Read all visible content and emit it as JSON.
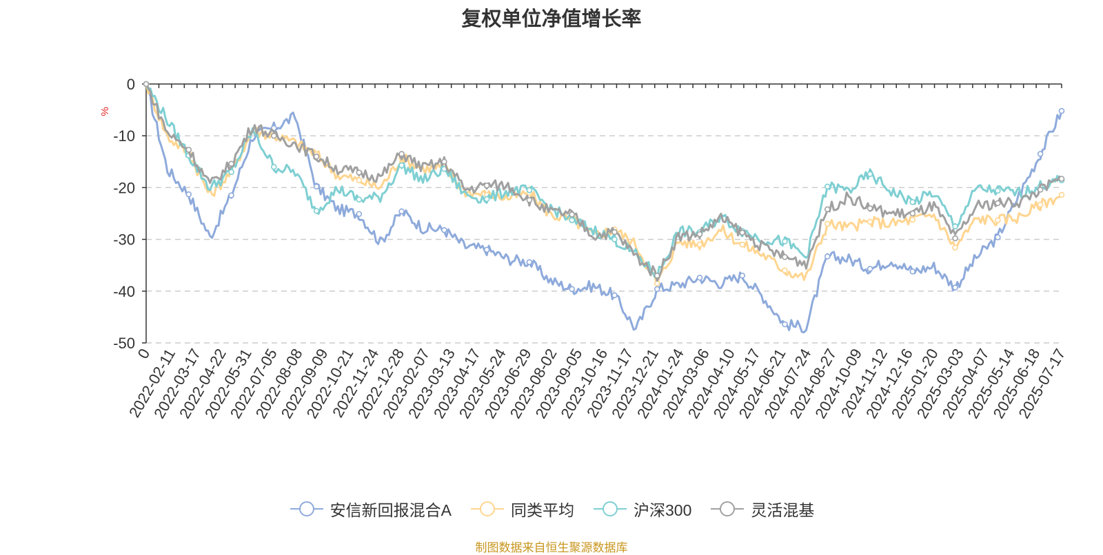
{
  "chart_data": {
    "type": "line",
    "title": "复权单位净值增长率",
    "ylabel": "%",
    "ylim": [
      -50,
      0
    ],
    "yticks": [
      0,
      -10,
      -20,
      -30,
      -40,
      -50
    ],
    "x_start_label": "0",
    "x_tick_labels": [
      "2022-02-11",
      "2022-03-17",
      "2022-04-22",
      "2022-05-31",
      "2022-07-05",
      "2022-08-08",
      "2022-09-09",
      "2022-10-21",
      "2022-11-24",
      "2022-12-28",
      "2023-02-07",
      "2023-03-13",
      "2023-04-17",
      "2023-05-24",
      "2023-06-29",
      "2023-08-02",
      "2023-09-05",
      "2023-10-16",
      "2023-11-17",
      "2023-12-21",
      "2024-01-24",
      "2024-03-06",
      "2024-04-10",
      "2024-05-17",
      "2024-06-21",
      "2024-07-24",
      "2024-08-27",
      "2024-10-09",
      "2024-11-12",
      "2024-12-16",
      "2025-01-20",
      "2025-03-03",
      "2025-04-07",
      "2025-05-14",
      "2025-06-18",
      "2025-07-17"
    ],
    "grid": "horizontal-dashed",
    "legend_position": "bottom",
    "series": [
      {
        "name": "安信新回报混合A",
        "color": "#8eaadb",
        "values": [
          0,
          -16.5,
          -21.3,
          -29.6,
          -21.5,
          -10.1,
          -8.5,
          -6.3,
          -19.8,
          -24.2,
          -25.1,
          -30.6,
          -24.6,
          -27.8,
          -28.2,
          -31.4,
          -32.0,
          -33.8,
          -34.4,
          -38.0,
          -39.6,
          -39.0,
          -40.8,
          -47.4,
          -39.6,
          -38.8,
          -37.4,
          -38.5,
          -37.0,
          -41.2,
          -46.4,
          -47.0,
          -33.3,
          -33.8,
          -35.7,
          -34.0,
          -36.2,
          -35.2,
          -39.3,
          -33.5,
          -29.6,
          -21.4,
          -13.5,
          -5.2
        ]
      },
      {
        "name": "同类平均",
        "color": "#ffd590",
        "values": [
          0,
          -10.2,
          -13.3,
          -21.5,
          -17.0,
          -9.0,
          -10.0,
          -11.3,
          -13.6,
          -17.6,
          -18.6,
          -20.0,
          -14.2,
          -16.4,
          -16.0,
          -20.8,
          -21.4,
          -22.0,
          -21.0,
          -25.3,
          -26.1,
          -29.2,
          -28.1,
          -31.0,
          -38.5,
          -30.4,
          -31.0,
          -28.1,
          -31.0,
          -33.0,
          -36.0,
          -37.4,
          -27.0,
          -27.7,
          -26.6,
          -27.0,
          -26.2,
          -25.2,
          -31.6,
          -26.0,
          -26.3,
          -25.7,
          -23.3,
          -21.4
        ]
      },
      {
        "name": "沪深300",
        "color": "#7ecfd2",
        "values": [
          0,
          -7.0,
          -13.8,
          -20.1,
          -17.0,
          -9.0,
          -16.0,
          -17.0,
          -24.5,
          -20.2,
          -22.3,
          -21.8,
          -15.7,
          -18.6,
          -16.4,
          -21.4,
          -22.2,
          -20.6,
          -20.5,
          -24.0,
          -26.3,
          -28.2,
          -30.0,
          -33.0,
          -37.0,
          -28.5,
          -28.6,
          -25.6,
          -28.4,
          -30.0,
          -30.4,
          -33.4,
          -19.8,
          -20.6,
          -17.4,
          -20.7,
          -22.8,
          -21.0,
          -27.5,
          -20.2,
          -20.6,
          -21.0,
          -19.8,
          -18.6
        ]
      },
      {
        "name": "灵活混基",
        "color": "#a0a0a0",
        "values": [
          0,
          -9.4,
          -12.7,
          -19.5,
          -15.4,
          -8.0,
          -10.0,
          -11.5,
          -14.0,
          -16.4,
          -17.1,
          -18.0,
          -13.5,
          -16.2,
          -15.0,
          -20.4,
          -19.6,
          -19.6,
          -22.4,
          -24.7,
          -25.2,
          -29.3,
          -28.6,
          -33.2,
          -37.0,
          -29.4,
          -29.0,
          -25.9,
          -28.7,
          -31.6,
          -33.4,
          -34.6,
          -24.2,
          -21.8,
          -24.0,
          -25.0,
          -25.0,
          -23.6,
          -29.8,
          -23.6,
          -23.0,
          -22.8,
          -20.4,
          -18.3
        ]
      }
    ]
  },
  "legend_title_hidden": "",
  "source_note": "制图数据来自恒生聚源数据库"
}
